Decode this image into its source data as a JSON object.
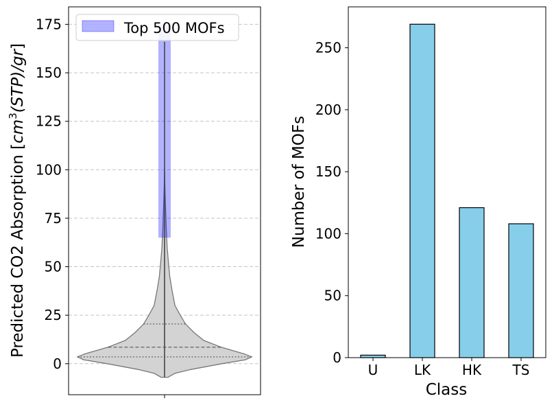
{
  "chart_data": [
    {
      "type": "violin",
      "ylabel_prefix": "Predicted CO2 Absorption [",
      "ylabel_math": "cm",
      "ylabel_sup": "3",
      "ylabel_math_rest": "(STP)/gr",
      "ylabel_suffix": "]",
      "ylim": [
        -16,
        184
      ],
      "yticks": [
        0,
        25,
        50,
        75,
        100,
        125,
        150,
        175
      ],
      "grid": "horizontal dashed",
      "data_range": [
        -7,
        166
      ],
      "quartiles": {
        "q1": 3.5,
        "median": 8.5,
        "q3": 20.5
      },
      "density_profile": [
        {
          "y": -7,
          "w": 0.04
        },
        {
          "y": -5,
          "w": 0.12
        },
        {
          "y": -3,
          "w": 0.3
        },
        {
          "y": 0,
          "w": 0.66
        },
        {
          "y": 2,
          "w": 0.93
        },
        {
          "y": 3.5,
          "w": 1.0
        },
        {
          "y": 5,
          "w": 0.92
        },
        {
          "y": 8.5,
          "w": 0.65
        },
        {
          "y": 12,
          "w": 0.45
        },
        {
          "y": 16,
          "w": 0.34
        },
        {
          "y": 20.5,
          "w": 0.24
        },
        {
          "y": 25,
          "w": 0.18
        },
        {
          "y": 30,
          "w": 0.12
        },
        {
          "y": 38,
          "w": 0.085
        },
        {
          "y": 45,
          "w": 0.06
        },
        {
          "y": 52,
          "w": 0.045
        },
        {
          "y": 60,
          "w": 0.03
        },
        {
          "y": 70,
          "w": 0.02
        },
        {
          "y": 80,
          "w": 0.012
        },
        {
          "y": 90,
          "w": 0.005
        },
        {
          "y": 100,
          "w": 0.0
        }
      ],
      "highlight": {
        "label": "Top 500 MOFs",
        "y_from": 65,
        "y_to": 175,
        "color": "#0000ff",
        "opacity": 0.3
      },
      "legend_position": "top-left",
      "fill_color": "#d3d3d3",
      "edge_color": "#777777"
    },
    {
      "type": "bar",
      "categories": [
        "U",
        "LK",
        "HK",
        "TS"
      ],
      "values": [
        2,
        269,
        121,
        108
      ],
      "xlabel": "Class",
      "ylabel": "Number of MOFs",
      "ylim": [
        0,
        283
      ],
      "yticks": [
        0,
        50,
        100,
        150,
        200,
        250
      ],
      "bar_color": "#87ceeb",
      "edge_color": "#000000"
    }
  ]
}
